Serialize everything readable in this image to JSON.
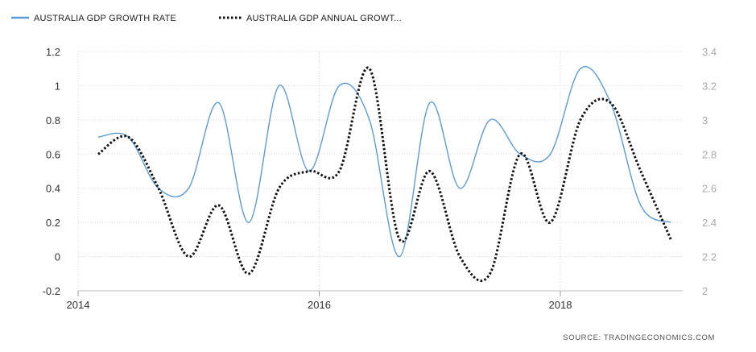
{
  "chart_data": {
    "type": "line",
    "legend_position": "top-left",
    "grid": true,
    "x_ticks": [
      "2014",
      "2016",
      "2018"
    ],
    "left_ticks": [
      "-0.2",
      "0",
      "0.2",
      "0.4",
      "0.6",
      "0.8",
      "1",
      "1.2"
    ],
    "right_ticks": [
      "2",
      "2.2",
      "2.4",
      "2.6",
      "2.8",
      "3",
      "3.2",
      "3.4"
    ],
    "ylim_left": [
      -0.2,
      1.2
    ],
    "ylim_right": [
      2.0,
      3.4
    ],
    "x": [
      "2014-03",
      "2014-06",
      "2014-09",
      "2014-12",
      "2015-03",
      "2015-06",
      "2015-09",
      "2015-12",
      "2016-03",
      "2016-06",
      "2016-09",
      "2016-12",
      "2017-03",
      "2017-06",
      "2017-09",
      "2017-12",
      "2018-03",
      "2018-06",
      "2018-09",
      "2018-12"
    ],
    "series": [
      {
        "name": "AUSTRALIA GDP GROWTH RATE",
        "axis": "left",
        "color": "#5b9bd5",
        "style": "solid",
        "values": [
          0.7,
          0.7,
          0.4,
          0.4,
          0.9,
          0.2,
          1.0,
          0.5,
          1.0,
          0.8,
          0.0,
          0.9,
          0.4,
          0.8,
          0.6,
          0.6,
          1.1,
          0.9,
          0.3,
          0.2
        ]
      },
      {
        "name": "AUSTRALIA GDP ANNUAL GROWT...",
        "axis": "right",
        "color": "#111111",
        "style": "dotted",
        "values": [
          2.8,
          2.9,
          2.6,
          2.2,
          2.5,
          2.1,
          2.6,
          2.7,
          2.7,
          3.3,
          2.3,
          2.7,
          2.2,
          2.1,
          2.8,
          2.4,
          3.0,
          3.1,
          2.7,
          2.3
        ]
      }
    ],
    "source": "SOURCE:  TRADINGECONOMICS.COM"
  }
}
